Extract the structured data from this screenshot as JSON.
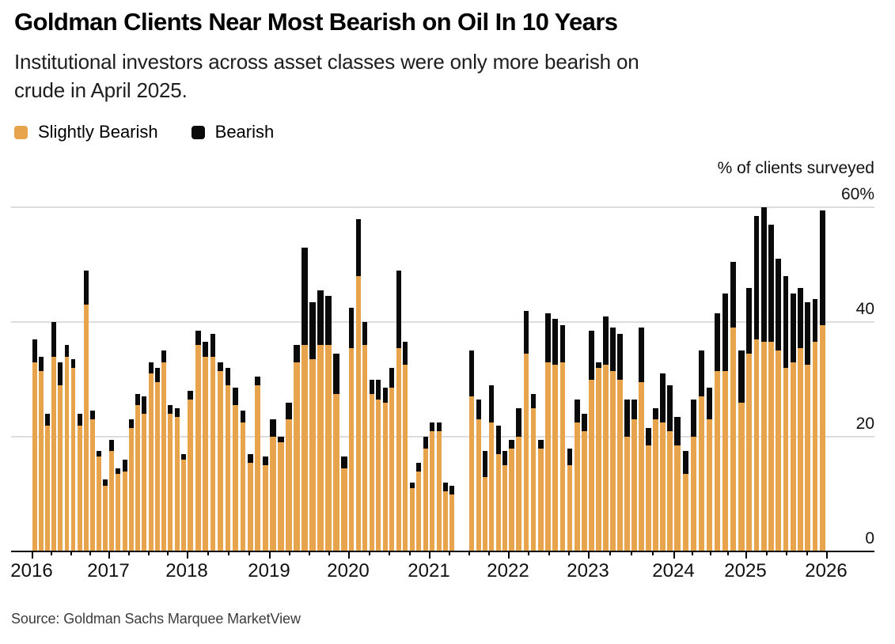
{
  "header": {
    "title": "Goldman Clients Near Most Bearish on Oil In 10 Years",
    "subtitle": "Institutional investors across asset classes were only more bearish on crude in April 2025.",
    "subtitle_line1": "Institutional investors across asset classes were only more bearish on",
    "subtitle_line2": "crude in April 2025."
  },
  "legend": {
    "items": [
      {
        "label": "Slightly Bearish",
        "color": "#E8A44C"
      },
      {
        "label": "Bearish",
        "color": "#0a0a0a"
      }
    ]
  },
  "source": "Source: Goldman Sachs Marquee MarketView",
  "chart_data": {
    "type": "bar",
    "stacked": true,
    "title": "Goldman Clients Near Most Bearish on Oil In 10 Years",
    "ylabel": "% of clients surveyed",
    "ylim": [
      0,
      60
    ],
    "grid": "horizontal",
    "legend_position": "top-left",
    "y_ticks": [
      {
        "value": 60,
        "label": "60%"
      },
      {
        "value": 40,
        "label": "40"
      },
      {
        "value": 20,
        "label": "20"
      },
      {
        "value": 0,
        "label": "0"
      }
    ],
    "x_tick_labels": [
      "2016",
      "2017",
      "2018",
      "2019",
      "2020",
      "2021",
      "2022",
      "2023",
      "2024",
      "2025",
      "2026"
    ],
    "series_order": [
      "Slightly Bearish",
      "Bearish"
    ],
    "colors": {
      "slightly_bearish": "#E8A44C",
      "bearish": "#0a0a0a"
    },
    "note": "Each bar = one client survey (roughly monthly). Values are percent of clients surveyed: [slightly_bearish, bearish] stacked segments; null = no survey (gap in mid-2021). Estimated from chart pixels.",
    "years": [
      {
        "year": 2016,
        "values": [
          [
            33,
            4
          ],
          [
            31.5,
            2.5
          ],
          [
            22,
            2
          ],
          [
            34,
            6
          ],
          [
            29,
            4
          ],
          [
            34,
            2
          ],
          [
            32,
            1.5
          ],
          [
            22,
            2
          ],
          [
            43,
            6
          ],
          [
            23,
            1.5
          ],
          [
            16.5,
            1
          ],
          [
            11.5,
            1
          ]
        ]
      },
      {
        "year": 2017,
        "values": [
          [
            17.5,
            2
          ],
          [
            13.5,
            1
          ],
          [
            14,
            2
          ],
          [
            21.5,
            1.5
          ],
          [
            25.5,
            2
          ],
          [
            24,
            3
          ],
          [
            31,
            2
          ],
          [
            29.5,
            2.5
          ],
          [
            33,
            2
          ],
          [
            24,
            1.5
          ],
          [
            23.5,
            1.5
          ],
          [
            16,
            1
          ]
        ]
      },
      {
        "year": 2018,
        "values": [
          [
            26.5,
            1.5
          ],
          [
            36,
            2.5
          ],
          [
            34,
            2.5
          ],
          [
            34,
            4
          ],
          [
            31.5,
            1.5
          ],
          [
            29,
            3
          ],
          [
            25.5,
            3
          ],
          [
            22.5,
            2
          ],
          [
            15.5,
            1.5
          ],
          [
            29,
            1.5
          ],
          [
            15,
            1.5
          ]
        ]
      },
      {
        "year": 2019,
        "values": [
          [
            20,
            3
          ],
          [
            19,
            1
          ],
          [
            23,
            3
          ],
          [
            33,
            3
          ],
          [
            36,
            17
          ],
          [
            33.5,
            10
          ],
          [
            36,
            9.5
          ],
          [
            36,
            8.5
          ],
          [
            27.5,
            7
          ],
          [
            14.5,
            2
          ]
        ]
      },
      {
        "year": 2020,
        "values": [
          [
            35.5,
            7
          ],
          [
            48,
            10
          ],
          [
            36,
            4
          ],
          [
            27.5,
            2.5
          ],
          [
            26.5,
            3.5
          ],
          [
            26,
            2.5
          ],
          [
            28.5,
            3.5
          ],
          [
            35.5,
            13.5
          ],
          [
            32.5,
            4
          ],
          [
            11,
            1
          ],
          [
            14,
            1.5
          ],
          [
            18,
            2
          ]
        ]
      },
      {
        "year": 2021,
        "values": [
          [
            21,
            1.5
          ],
          [
            21,
            1.5
          ],
          [
            10.5,
            1.5
          ],
          [
            10,
            1.5
          ],
          null,
          null,
          [
            27,
            8
          ],
          [
            23,
            3.5
          ],
          [
            13,
            4.5
          ],
          [
            22.5,
            6.5
          ],
          [
            17,
            5
          ],
          [
            15,
            2.5
          ]
        ]
      },
      {
        "year": 2022,
        "values": [
          [
            18,
            1.5
          ],
          [
            20,
            5
          ],
          [
            34.5,
            7.5
          ],
          [
            25,
            2.5
          ],
          [
            18,
            1.5
          ],
          [
            33,
            8.5
          ],
          [
            32.5,
            8
          ],
          [
            33,
            6.5
          ],
          [
            15,
            3
          ],
          [
            22.5,
            4
          ],
          [
            21,
            3
          ]
        ]
      },
      {
        "year": 2023,
        "values": [
          [
            30,
            8.5
          ],
          [
            32,
            1
          ],
          [
            32.5,
            8.5
          ],
          [
            31.5,
            7.5
          ],
          [
            30,
            8
          ],
          [
            20,
            6.5
          ],
          [
            23,
            3.5
          ],
          [
            29.5,
            9.5
          ],
          [
            18.5,
            3
          ],
          [
            23,
            2
          ],
          [
            22.5,
            8.5
          ],
          [
            21,
            8
          ]
        ]
      },
      {
        "year": 2024,
        "values": [
          [
            18.5,
            5
          ],
          [
            13.5,
            4
          ],
          [
            20,
            6.5
          ],
          [
            27,
            8
          ],
          [
            23,
            5.5
          ],
          [
            31.5,
            10
          ],
          [
            31.5,
            13.5
          ],
          [
            39,
            11.5
          ],
          [
            26,
            9
          ]
        ]
      },
      {
        "year": 2025,
        "values": [
          [
            34.5,
            11.5
          ],
          [
            37,
            21.5
          ],
          [
            36.5,
            23.5
          ],
          [
            36.5,
            20.5
          ],
          [
            35,
            16
          ],
          [
            32,
            16
          ],
          [
            33,
            12
          ],
          [
            35.5,
            10.5
          ],
          [
            32.5,
            11
          ],
          [
            36.5,
            7.5
          ],
          [
            39.5,
            20
          ]
        ]
      }
    ]
  }
}
